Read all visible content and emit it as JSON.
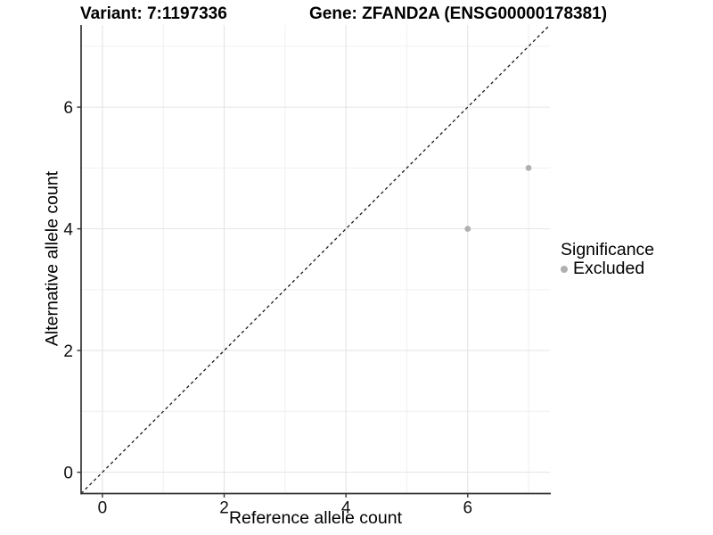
{
  "figure": {
    "title_left": "Variant: 7:1197336",
    "title_right": "Gene: ZFAND2A (ENSG00000178381)",
    "x_label": "Reference allele count",
    "y_label": "Alternative allele count"
  },
  "legend": {
    "title": "Significance",
    "items": [
      {
        "label": "Excluded",
        "color": "#b0b0b0"
      }
    ]
  },
  "chart_data": {
    "type": "scatter",
    "title": "Variant: 7:1197336   Gene: ZFAND2A (ENSG00000178381)",
    "xlabel": "Reference allele count",
    "ylabel": "Alternative allele count",
    "xlim": [
      -0.35,
      7.35
    ],
    "ylim": [
      -0.35,
      7.35
    ],
    "x_ticks": [
      0,
      2,
      4,
      6
    ],
    "y_ticks": [
      0,
      2,
      4,
      6
    ],
    "x_minor_gridlines": [
      1,
      3,
      5,
      7
    ],
    "y_minor_gridlines": [
      1,
      3,
      5,
      7
    ],
    "grid": "major+minor",
    "legend_title": "Significance",
    "legend_position": "right",
    "series": [
      {
        "name": "Excluded",
        "color": "#b0b0b0",
        "points": [
          {
            "x": 6,
            "y": 4
          },
          {
            "x": 7,
            "y": 5
          }
        ]
      }
    ],
    "reference_line": {
      "type": "y=x",
      "style": "dashed",
      "color": "#1a1a1a"
    },
    "colors": {
      "background": "#ffffff",
      "grid_major": "#e4e4e4",
      "grid_minor": "#f0f0f0",
      "axis_line": "#333333",
      "tick_text": "#111111",
      "point": "#b0b0b0"
    }
  }
}
